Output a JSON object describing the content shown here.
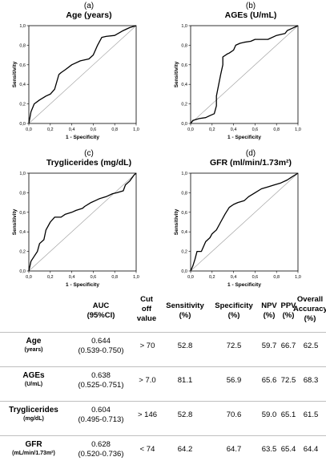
{
  "chart_data": [
    {
      "type": "line",
      "panel_label": "(a)",
      "title": "Age (years)",
      "xlabel": "1 - Specificity",
      "ylabel": "Sensitivity",
      "xlim": [
        0,
        1
      ],
      "ylim": [
        0,
        1
      ],
      "ticks": [
        "0,0",
        "0,2",
        "0,4",
        "0,6",
        "0,8",
        "1,0"
      ],
      "reference_line": true,
      "series": [
        {
          "x": [
            0,
            0.02,
            0.05,
            0.1,
            0.16,
            0.2,
            0.24,
            0.28,
            0.3,
            0.34,
            0.4,
            0.48,
            0.56,
            0.6,
            0.64,
            0.68,
            0.72,
            0.8,
            0.88,
            0.94,
            1.0
          ],
          "y": [
            0,
            0.12,
            0.2,
            0.24,
            0.28,
            0.3,
            0.35,
            0.5,
            0.52,
            0.55,
            0.6,
            0.64,
            0.66,
            0.7,
            0.8,
            0.88,
            0.89,
            0.9,
            0.95,
            0.98,
            1.0
          ]
        }
      ]
    },
    {
      "type": "line",
      "panel_label": "(b)",
      "title": "AGEs (U/mL)",
      "xlabel": "1 - Specificity",
      "ylabel": "Sensitivity",
      "xlim": [
        0,
        1
      ],
      "ylim": [
        0,
        1
      ],
      "ticks": [
        "0,0",
        "0,2",
        "0,4",
        "0,6",
        "0,8",
        "1,0"
      ],
      "reference_line": true,
      "series": [
        {
          "x": [
            0,
            0.02,
            0.08,
            0.14,
            0.18,
            0.22,
            0.24,
            0.24,
            0.28,
            0.3,
            0.3,
            0.34,
            0.36,
            0.4,
            0.42,
            0.46,
            0.5,
            0.56,
            0.6,
            0.66,
            0.72,
            0.8,
            0.88,
            0.9,
            0.94,
            1.0
          ],
          "y": [
            0,
            0.03,
            0.05,
            0.06,
            0.08,
            0.1,
            0.18,
            0.28,
            0.5,
            0.6,
            0.68,
            0.71,
            0.72,
            0.75,
            0.8,
            0.82,
            0.83,
            0.84,
            0.86,
            0.86,
            0.86,
            0.9,
            0.92,
            0.95,
            0.97,
            1.0
          ]
        }
      ]
    },
    {
      "type": "line",
      "panel_label": "(c)",
      "title": "Tryglicerides (mg/dL)",
      "xlabel": "1 - Specificity",
      "ylabel": "Sensitivity",
      "xlim": [
        0,
        1
      ],
      "ylim": [
        0,
        1
      ],
      "ticks": [
        "0,0",
        "0,2",
        "0,4",
        "0,6",
        "0,8",
        "1,0"
      ],
      "reference_line": true,
      "series": [
        {
          "x": [
            0,
            0.02,
            0.05,
            0.08,
            0.1,
            0.14,
            0.16,
            0.2,
            0.24,
            0.3,
            0.34,
            0.4,
            0.44,
            0.5,
            0.52,
            0.58,
            0.62,
            0.66,
            0.72,
            0.78,
            0.82,
            0.88,
            0.9,
            0.94,
            0.98,
            1.0
          ],
          "y": [
            0,
            0.1,
            0.15,
            0.2,
            0.28,
            0.32,
            0.42,
            0.5,
            0.55,
            0.55,
            0.58,
            0.6,
            0.62,
            0.64,
            0.66,
            0.7,
            0.72,
            0.74,
            0.76,
            0.79,
            0.8,
            0.82,
            0.88,
            0.92,
            0.98,
            1.0
          ]
        }
      ]
    },
    {
      "type": "line",
      "panel_label": "(d)",
      "title": "GFR (ml/min/1.73m²)",
      "xlabel": "1 - Specificity",
      "ylabel": "Sensitivity",
      "xlim": [
        0,
        1
      ],
      "ylim": [
        0,
        1
      ],
      "ticks": [
        "0,0",
        "0,2",
        "0,4",
        "0,6",
        "0,8",
        "1,0"
      ],
      "reference_line": true,
      "series": [
        {
          "x": [
            0,
            0.02,
            0.04,
            0.06,
            0.1,
            0.14,
            0.18,
            0.2,
            0.24,
            0.28,
            0.32,
            0.36,
            0.4,
            0.44,
            0.5,
            0.54,
            0.6,
            0.66,
            0.72,
            0.78,
            0.84,
            0.9,
            0.94,
            1.0
          ],
          "y": [
            0,
            0.05,
            0.12,
            0.2,
            0.2,
            0.3,
            0.34,
            0.38,
            0.42,
            0.5,
            0.58,
            0.65,
            0.68,
            0.7,
            0.72,
            0.76,
            0.8,
            0.84,
            0.86,
            0.88,
            0.9,
            0.93,
            0.96,
            1.0
          ]
        }
      ]
    },
    {
      "type": "table",
      "headers": [
        "AUC\n(95%CI)",
        "Cut\noff\nvalue",
        "Sensitivity\n(%)",
        "Specificity\n(%)",
        "NPV\n(%)",
        "PPV\n(%)",
        "Overall\nAccuracy\n(%)"
      ],
      "rows": [
        {
          "name": "Age",
          "unit": "(years)",
          "auc": "0.644",
          "ci": "(0.539-0.750)",
          "cutoff": "> 70",
          "sensitivity": "52.8",
          "specificity": "72.5",
          "npv": "59.7",
          "ppv": "66.7",
          "accuracy": "62.5"
        },
        {
          "name": "AGEs",
          "unit": "(U/mL)",
          "auc": "0.638",
          "ci": "(0.525-0.751)",
          "cutoff": "> 7.0",
          "sensitivity": "81.1",
          "specificity": "56.9",
          "npv": "65.6",
          "ppv": "72.5",
          "accuracy": "68.3"
        },
        {
          "name": "Tryglicerides",
          "unit": "(mg/dL)",
          "auc": "0.604",
          "ci": "(0.495-0.713)",
          "cutoff": "> 146",
          "sensitivity": "52.8",
          "specificity": "70.6",
          "npv": "59.0",
          "ppv": "65.1",
          "accuracy": "61.5"
        },
        {
          "name": "GFR",
          "unit": "(mL/min/1.73m²)",
          "auc": "0.628",
          "ci": "(0.520-0.736)",
          "cutoff": "< 74",
          "sensitivity": "64.2",
          "specificity": "64.7",
          "npv": "63.5",
          "ppv": "65.4",
          "accuracy": "64.4"
        }
      ]
    }
  ]
}
